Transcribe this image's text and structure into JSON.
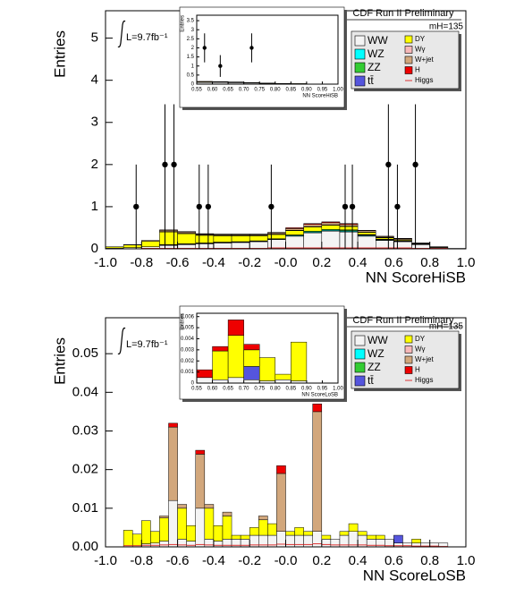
{
  "chart_data": [
    {
      "type": "stacked-histogram",
      "label": "CDF Run II Preliminary",
      "mass_label": "mH=135",
      "luminosity": "L=9.7fb⁻¹",
      "x_label": "NN ScoreHiSB",
      "y_label": "Entries",
      "legend": "top-right",
      "xlim": [
        -1,
        1
      ],
      "ylim": [
        0,
        5.65
      ],
      "xticks": [
        {
          "value": -1,
          "label": "-1.0"
        },
        -0.8,
        -0.6,
        -0.4,
        -0.2,
        {
          "value": 0,
          "label": "-0.0"
        },
        0.2,
        0.4,
        0.6,
        0.8,
        {
          "value": 1,
          "label": "1.0"
        }
      ],
      "yticks": [
        0,
        1,
        2,
        3,
        4,
        5
      ],
      "bins": [
        -1,
        -0.9,
        -0.8,
        -0.7,
        -0.6,
        -0.5,
        -0.4,
        -0.3,
        -0.2,
        -0.1,
        0,
        0.1,
        0.2,
        0.3,
        0.4,
        0.5,
        0.6,
        0.7,
        0.8,
        0.9,
        1
      ],
      "series": [
        {
          "name": "WW",
          "color": "#f4f4f4",
          "values": [
            0.02,
            0.03,
            0.05,
            0.08,
            0.1,
            0.12,
            0.14,
            0.15,
            0.17,
            0.22,
            0.3,
            0.38,
            0.42,
            0.4,
            0.3,
            0.2,
            0.17,
            0.1,
            0.03,
            0.01
          ]
        },
        {
          "name": "WZ",
          "color": "#00ffff",
          "values": [
            0,
            0,
            0,
            0.01,
            0.01,
            0.01,
            0.01,
            0.01,
            0.01,
            0.01,
            0.02,
            0.02,
            0.02,
            0.02,
            0.02,
            0.01,
            0.01,
            0.01,
            0,
            0
          ]
        },
        {
          "name": "ZZ",
          "color": "#33cc33",
          "values": [
            0,
            0,
            0,
            0.01,
            0.01,
            0.01,
            0.01,
            0.01,
            0.01,
            0.01,
            0.01,
            0.02,
            0.02,
            0.02,
            0.01,
            0.01,
            0.01,
            0,
            0,
            0
          ]
        },
        {
          "name": "tt̄",
          "color": "#5555dd",
          "values": [
            0,
            0,
            0,
            0,
            0,
            0,
            0,
            0,
            0,
            0,
            0,
            0,
            0,
            0.01,
            0.01,
            0.01,
            0.01,
            0.01,
            0,
            0
          ]
        },
        {
          "name": "DY",
          "color": "#ffff00",
          "values": [
            0.03,
            0.06,
            0.13,
            0.3,
            0.24,
            0.18,
            0.15,
            0.14,
            0.12,
            0.1,
            0.1,
            0.1,
            0.1,
            0.08,
            0.05,
            0.03,
            0.02,
            0.01,
            0.01,
            0
          ]
        },
        {
          "name": "Wγ",
          "color": "#f7b8b8",
          "values": [
            0,
            0,
            0,
            0.01,
            0.01,
            0.01,
            0.01,
            0.01,
            0.01,
            0.01,
            0.01,
            0.01,
            0.01,
            0.01,
            0.01,
            0.01,
            0,
            0,
            0,
            0
          ]
        },
        {
          "name": "W+jet",
          "color": "#d2a77c",
          "values": [
            0,
            0.01,
            0.02,
            0.03,
            0.03,
            0.02,
            0.02,
            0.02,
            0.02,
            0.03,
            0.04,
            0.05,
            0.05,
            0.04,
            0.03,
            0.02,
            0.02,
            0.01,
            0.01,
            0
          ]
        },
        {
          "name": "H",
          "color": "#ee0000",
          "values": [
            0,
            0,
            0,
            0.01,
            0.01,
            0.01,
            0.01,
            0.01,
            0.01,
            0.01,
            0.02,
            0.02,
            0.02,
            0.02,
            0.01,
            0.01,
            0.01,
            0,
            0,
            0
          ]
        }
      ],
      "signal": {
        "name": "Higgs",
        "color": "#dd3333",
        "values": [
          0,
          0,
          0.01,
          0.01,
          0.01,
          0.01,
          0.01,
          0.01,
          0.01,
          0.02,
          0.02,
          0.02,
          0.02,
          0.02,
          0.02,
          0.02,
          0.02,
          0.01,
          0.01,
          0
        ]
      },
      "data": {
        "x": [
          -0.83,
          -0.67,
          -0.62,
          -0.48,
          -0.43,
          -0.08,
          0.33,
          0.37,
          0.57,
          0.62,
          0.72
        ],
        "values": [
          1,
          2,
          2,
          1,
          1,
          1,
          1,
          1,
          2,
          1,
          2
        ],
        "errors_low": [
          1,
          2,
          2,
          1,
          1,
          1,
          1,
          1,
          2,
          1,
          2
        ],
        "errors_high": [
          1,
          1.43,
          1.43,
          1,
          1,
          1,
          1,
          1,
          1.43,
          1,
          1.43
        ]
      },
      "inset": {
        "x_label": "NN ScoreHiSB",
        "y_label": "Entries",
        "xlim": [
          0.55,
          1
        ],
        "ylim": [
          0,
          3.8
        ],
        "xticks": [
          0.55,
          {
            "value": 0.6,
            "label": "0.60"
          },
          0.65,
          {
            "value": 0.7,
            "label": "0.70"
          },
          0.75,
          {
            "value": 0.8,
            "label": "0.80"
          },
          0.85,
          {
            "value": 0.9,
            "label": "0.90"
          },
          0.95,
          {
            "value": 1,
            "label": "1.00"
          }
        ],
        "yticks": [
          0,
          0.5,
          1,
          1.5,
          2,
          2.5,
          3,
          3.5
        ],
        "bins": [
          0.55,
          0.6,
          0.65,
          0.7,
          0.75,
          0.8,
          0.85,
          0.9,
          0.95,
          1
        ],
        "series": [
          {
            "color": "#f4f4f4",
            "values": [
              0.1,
              0.1,
              0.08,
              0.06,
              0.04,
              0.03,
              0.02,
              0.01,
              0
            ]
          },
          {
            "color": "#ffff00",
            "values": [
              0.03,
              0.02,
              0.02,
              0.01,
              0.01,
              0.01,
              0.01,
              0,
              0
            ]
          },
          {
            "color": "#d2a77c",
            "values": [
              0.01,
              0.01,
              0.01,
              0.01,
              0.01,
              0,
              0,
              0,
              0
            ]
          },
          {
            "color": "#ee0000",
            "values": [
              0.01,
              0.01,
              0.01,
              0.01,
              0,
              0,
              0,
              0,
              0
            ]
          }
        ],
        "data": {
          "x": [
            0.575,
            0.625,
            0.725
          ],
          "values": [
            2,
            1,
            2
          ],
          "errors_low": [
            0.8,
            0.6,
            0.8
          ],
          "errors_high": [
            0.8,
            0.6,
            0.8
          ]
        }
      }
    },
    {
      "type": "stacked-histogram",
      "label": "CDF Run II Preliminary",
      "mass_label": "mH=135",
      "luminosity": "L=9.7fb⁻¹",
      "x_label": "NN ScoreLoSB",
      "y_label": "Entries",
      "legend": "top-right",
      "xlim": [
        -1,
        1
      ],
      "ylim": [
        0,
        0.0593
      ],
      "xticks": [
        {
          "value": -1,
          "label": "-1.0"
        },
        -0.8,
        -0.6,
        -0.4,
        -0.2,
        {
          "value": 0,
          "label": "-0.0"
        },
        0.2,
        0.4,
        0.6,
        0.8,
        {
          "value": 1,
          "label": "1.0"
        }
      ],
      "yticks": [
        {
          "value": 0,
          "label": "0.00"
        },
        0.01,
        0.02,
        0.03,
        0.04,
        0.05
      ],
      "bins": [
        -1,
        -0.95,
        -0.9,
        -0.85,
        -0.8,
        -0.75,
        -0.7,
        -0.65,
        -0.6,
        -0.55,
        -0.5,
        -0.45,
        -0.4,
        -0.35,
        -0.3,
        -0.25,
        -0.2,
        -0.15,
        -0.1,
        -0.05,
        0,
        0.05,
        0.1,
        0.15,
        0.2,
        0.25,
        0.3,
        0.35,
        0.4,
        0.45,
        0.5,
        0.55,
        0.6,
        0.65,
        0.7,
        0.75,
        0.8,
        0.85,
        0.9,
        0.95,
        1
      ],
      "series": [
        {
          "name": "WW",
          "color": "#f4f4f4",
          "values": [
            0,
            0,
            0.0003,
            0.0003,
            0.0008,
            0.001,
            0.0015,
            0.012,
            0.002,
            0.0015,
            0.01,
            0.002,
            0.0015,
            0.002,
            0.002,
            0.002,
            0.003,
            0.003,
            0.003,
            0.004,
            0.003,
            0.003,
            0.003,
            0.004,
            0.002,
            0.002,
            0.003,
            0.004,
            0.003,
            0.002,
            0.002,
            0.002,
            0.001,
            0.001,
            0.001,
            0.001,
            0.001,
            0.001,
            0,
            0
          ]
        },
        {
          "name": "WZ",
          "color": "#00ffff",
          "values": [
            0,
            0,
            0,
            0,
            0,
            0,
            0,
            0,
            0,
            0,
            0,
            0,
            0,
            0,
            0,
            0,
            0,
            0,
            0,
            0,
            0,
            0,
            0,
            0,
            0,
            0,
            0,
            0,
            0,
            0,
            0,
            0,
            0,
            0,
            0,
            0,
            0,
            0,
            0,
            0
          ]
        },
        {
          "name": "ZZ",
          "color": "#33cc33",
          "values": [
            0,
            0,
            0,
            0,
            0,
            0,
            0,
            0,
            0,
            0,
            0,
            0,
            0,
            0,
            0,
            0,
            0,
            0,
            0,
            0,
            0,
            0,
            0,
            0,
            0,
            0,
            0,
            0,
            0,
            0,
            0,
            0,
            0,
            0,
            0,
            0,
            0,
            0,
            0,
            0
          ]
        },
        {
          "name": "tt̄",
          "color": "#5555dd",
          "values": [
            0,
            0,
            0,
            0,
            0,
            0,
            0,
            0,
            0,
            0,
            0,
            0,
            0,
            0,
            0,
            0,
            0,
            0,
            0,
            0,
            0,
            0,
            0,
            0,
            0,
            0,
            0,
            0,
            0,
            0,
            0,
            0,
            0.002,
            0,
            0,
            0,
            0,
            0,
            0,
            0
          ]
        },
        {
          "name": "DY",
          "color": "#ffff00",
          "values": [
            0,
            0,
            0.004,
            0.003,
            0.006,
            0.003,
            0.006,
            0,
            0.008,
            0.004,
            0,
            0.008,
            0.004,
            0.006,
            0.001,
            0.001,
            0.002,
            0.004,
            0.003,
            0,
            0.001,
            0.002,
            0.001,
            0,
            0.001,
            0,
            0.001,
            0.002,
            0.001,
            0.001,
            0.001,
            0,
            0,
            0,
            0.001,
            0,
            0,
            0,
            0,
            0
          ]
        },
        {
          "name": "Wγ",
          "color": "#f7b8b8",
          "values": [
            0,
            0,
            0,
            0,
            0,
            0,
            0,
            0,
            0,
            0,
            0,
            0,
            0,
            0,
            0,
            0,
            0,
            0,
            0,
            0,
            0,
            0,
            0,
            0,
            0,
            0,
            0,
            0,
            0,
            0,
            0,
            0,
            0,
            0,
            0,
            0,
            0,
            0,
            0,
            0
          ]
        },
        {
          "name": "W+jet",
          "color": "#d2a77c",
          "values": [
            0,
            0,
            0,
            0,
            0,
            0,
            0.0005,
            0.019,
            0.001,
            0,
            0.014,
            0.001,
            0,
            0.001,
            0,
            0,
            0,
            0.001,
            0,
            0.015,
            0,
            0,
            0,
            0.031,
            0,
            0,
            0,
            0,
            0,
            0,
            0,
            0,
            0,
            0,
            0,
            0,
            0,
            0,
            0,
            0
          ]
        },
        {
          "name": "H",
          "color": "#ee0000",
          "values": [
            0,
            0,
            0,
            0,
            0,
            0,
            0,
            0.001,
            0,
            0,
            0.001,
            0,
            0,
            0,
            0,
            0,
            0,
            0,
            0,
            0.002,
            0,
            0,
            0,
            0.002,
            0,
            0,
            0,
            0,
            0,
            0,
            0,
            0,
            0,
            0,
            0,
            0,
            0,
            0,
            0,
            0
          ]
        }
      ],
      "signal": {
        "name": "Higgs",
        "color": "#dd3333",
        "values": [
          0,
          0,
          0.0003,
          0.0003,
          0.0004,
          0.0004,
          0.0005,
          0.0006,
          0.0005,
          0.0004,
          0.0006,
          0.0005,
          0.0004,
          0.0004,
          0.0004,
          0.0004,
          0.0005,
          0.0005,
          0.0005,
          0.0007,
          0.0006,
          0.0006,
          0.0006,
          0.0008,
          0.0006,
          0.0005,
          0.0005,
          0.0005,
          0.0005,
          0.0004,
          0.0004,
          0.0003,
          0.0003,
          0.0003,
          0.0002,
          0.0002,
          0.0002,
          0.0001,
          0,
          0
        ]
      },
      "inset": {
        "x_label": "NN ScoreLoSB",
        "y_label": "Entries",
        "xlim": [
          0.55,
          1
        ],
        "ylim": [
          0,
          0.0063
        ],
        "xticks": [
          0.55,
          {
            "value": 0.6,
            "label": "0.60"
          },
          0.65,
          {
            "value": 0.7,
            "label": "0.70"
          },
          0.75,
          {
            "value": 0.8,
            "label": "0.80"
          },
          0.85,
          {
            "value": 0.9,
            "label": "0.90"
          },
          0.95,
          {
            "value": 1,
            "label": "1.00"
          }
        ],
        "yticks": [
          0,
          0.001,
          0.002,
          0.003,
          0.004,
          0.005,
          0.006
        ],
        "bins": [
          0.55,
          0.6,
          0.65,
          0.7,
          0.75,
          0.8,
          0.85,
          0.9,
          0.95,
          1
        ],
        "series": [
          {
            "color": "#f4f4f4",
            "values": [
              0.0005,
              0.0003,
              0.0005,
              0.0003,
              0.0002,
              0.0003,
              0.0002,
              0,
              0
            ]
          },
          {
            "color": "#5555dd",
            "values": [
              0,
              0,
              0,
              0.0012,
              0,
              0,
              0,
              0,
              0
            ]
          },
          {
            "color": "#ffff00",
            "values": [
              0,
              0.0026,
              0.0038,
              0.0015,
              0.0021,
              0.0005,
              0.0035,
              0,
              0
            ]
          },
          {
            "color": "#ee0000",
            "values": [
              0.0007,
              0.0004,
              0.0014,
              0.0005,
              0,
              0,
              0,
              0,
              0
            ]
          }
        ]
      }
    }
  ]
}
